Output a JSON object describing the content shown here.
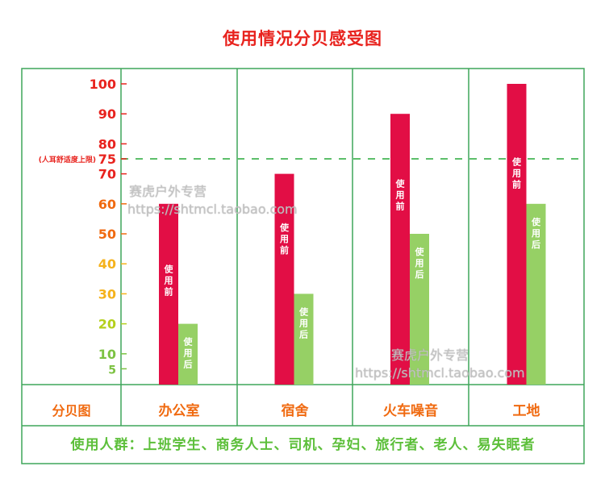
{
  "chart_data": {
    "type": "bar",
    "title": "使用情况分贝感受图",
    "xlabel": "分贝图",
    "ylabel": "",
    "ylim": [
      0,
      100
    ],
    "yticks": [
      100,
      90,
      80,
      75,
      70,
      60,
      50,
      40,
      30,
      20,
      10,
      5
    ],
    "threshold": {
      "value": 75,
      "label": "(人耳舒适度上限)"
    },
    "categories": [
      "办公室",
      "宿舍",
      "火车噪音",
      "工地"
    ],
    "series": [
      {
        "name": "使用前",
        "color": "#e20e45",
        "values": [
          60,
          70,
          90,
          100
        ]
      },
      {
        "name": "使用后",
        "color": "#96d065",
        "values": [
          20,
          30,
          50,
          60
        ]
      }
    ],
    "footer": "使用人群：上班学生、商务人士、司机、孕妇、旅行者、老人、易失眠者"
  },
  "watermark": [
    "赛虎户外专营",
    "https://shtmcl.taobao.com"
  ],
  "colors": {
    "grid": "#3fa55a",
    "dash": "#5cbf6a",
    "category": "#f06a10"
  }
}
